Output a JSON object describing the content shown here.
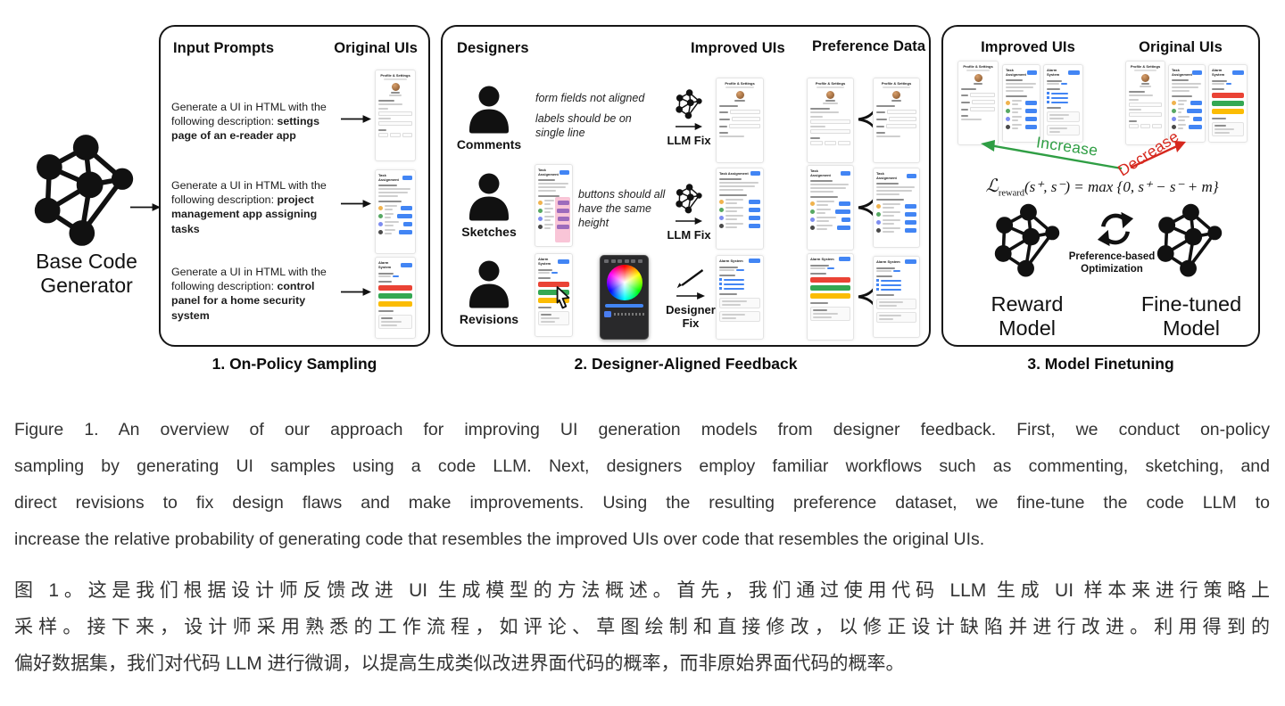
{
  "figure": {
    "base_generator": {
      "label": "Base Code Generator"
    },
    "panel1": {
      "header_left": "Input Prompts",
      "header_right": "Original UIs",
      "footer": "1. On-Policy Sampling",
      "prompts": [
        {
          "prefix": "Generate a UI in HTML with the following description: ",
          "emphasis": "settings page of an e-reader app"
        },
        {
          "prefix": "Generate a UI in HTML with the following description: ",
          "emphasis": "project management app assigning tasks"
        },
        {
          "prefix": "Generate a UI in HTML with the following description: ",
          "emphasis": "control panel for a home security system"
        }
      ]
    },
    "panel2": {
      "header_designers": "Designers",
      "header_improved": "Improved UIs",
      "header_preference": "Preference Data",
      "footer": "2. Designer-Aligned Feedback",
      "preference_symbol": "≺",
      "rows": [
        {
          "label": "Comments",
          "note_line1": "form fields not aligned",
          "note_line2": "labels should be on single line",
          "fix_label": "LLM Fix"
        },
        {
          "label": "Sketches",
          "note": "buttons should all have the same height",
          "fix_label": "LLM Fix"
        },
        {
          "label": "Revisions",
          "fix_label": "Designer Fix"
        }
      ]
    },
    "panel3": {
      "header_improved": "Improved UIs",
      "header_original": "Original UIs",
      "footer": "3. Model Finetuning",
      "increase_label": "Increase",
      "decrease_label": "Decrease",
      "formula": {
        "script_l": "ℒ",
        "subscript": "reward",
        "body": "(s⁺, s⁻) = max {0, s⁺ − s⁻ + m}"
      },
      "optimization_label_line1": "Preference-based",
      "optimization_label_line2": "Optimization",
      "reward_model_label": "Reward Model",
      "finetuned_model_label": "Fine-tuned Model"
    },
    "thumbnails": {
      "profile_title": "Profile & Settings",
      "task_title": "Task Assignment",
      "alarm_title": "Alarm System"
    }
  },
  "caption_en": {
    "lines": [
      "Figure 1. An overview of our approach for improving UI generation models from designer feedback. First, we conduct on-policy",
      "sampling by generating UI samples using a code LLM. Next, designers employ familiar workflows such as commenting, sketching, and",
      "direct revisions to fix design flaws and make improvements. Using the resulting preference dataset, we fine-tune the code LLM to",
      "increase the relative probability of generating code that resembles the improved UIs over code that resembles the original UIs."
    ]
  },
  "caption_zh": {
    "lines": [
      "图 1。这是我们根据设计师反馈改进 UI 生成模型的方法概述。首先，我们通过使用代码 LLM 生成 UI 样本来进行策略上",
      "采样。接下来，设计师采用熟悉的工作流程，如评论、草图绘制和直接修改，以修正设计缺陷并进行改进。利用得到的",
      "偏好数据集，我们对代码 LLM 进行微调，以提高生成类似改进界面代码的概率，而非原始界面代码的概率。"
    ]
  },
  "colors": {
    "blue": "#4285f4",
    "red": "#ea4335",
    "green": "#34a853",
    "amber": "#fbbc04",
    "increase": "#2f9e44",
    "decrease": "#d6281e"
  }
}
